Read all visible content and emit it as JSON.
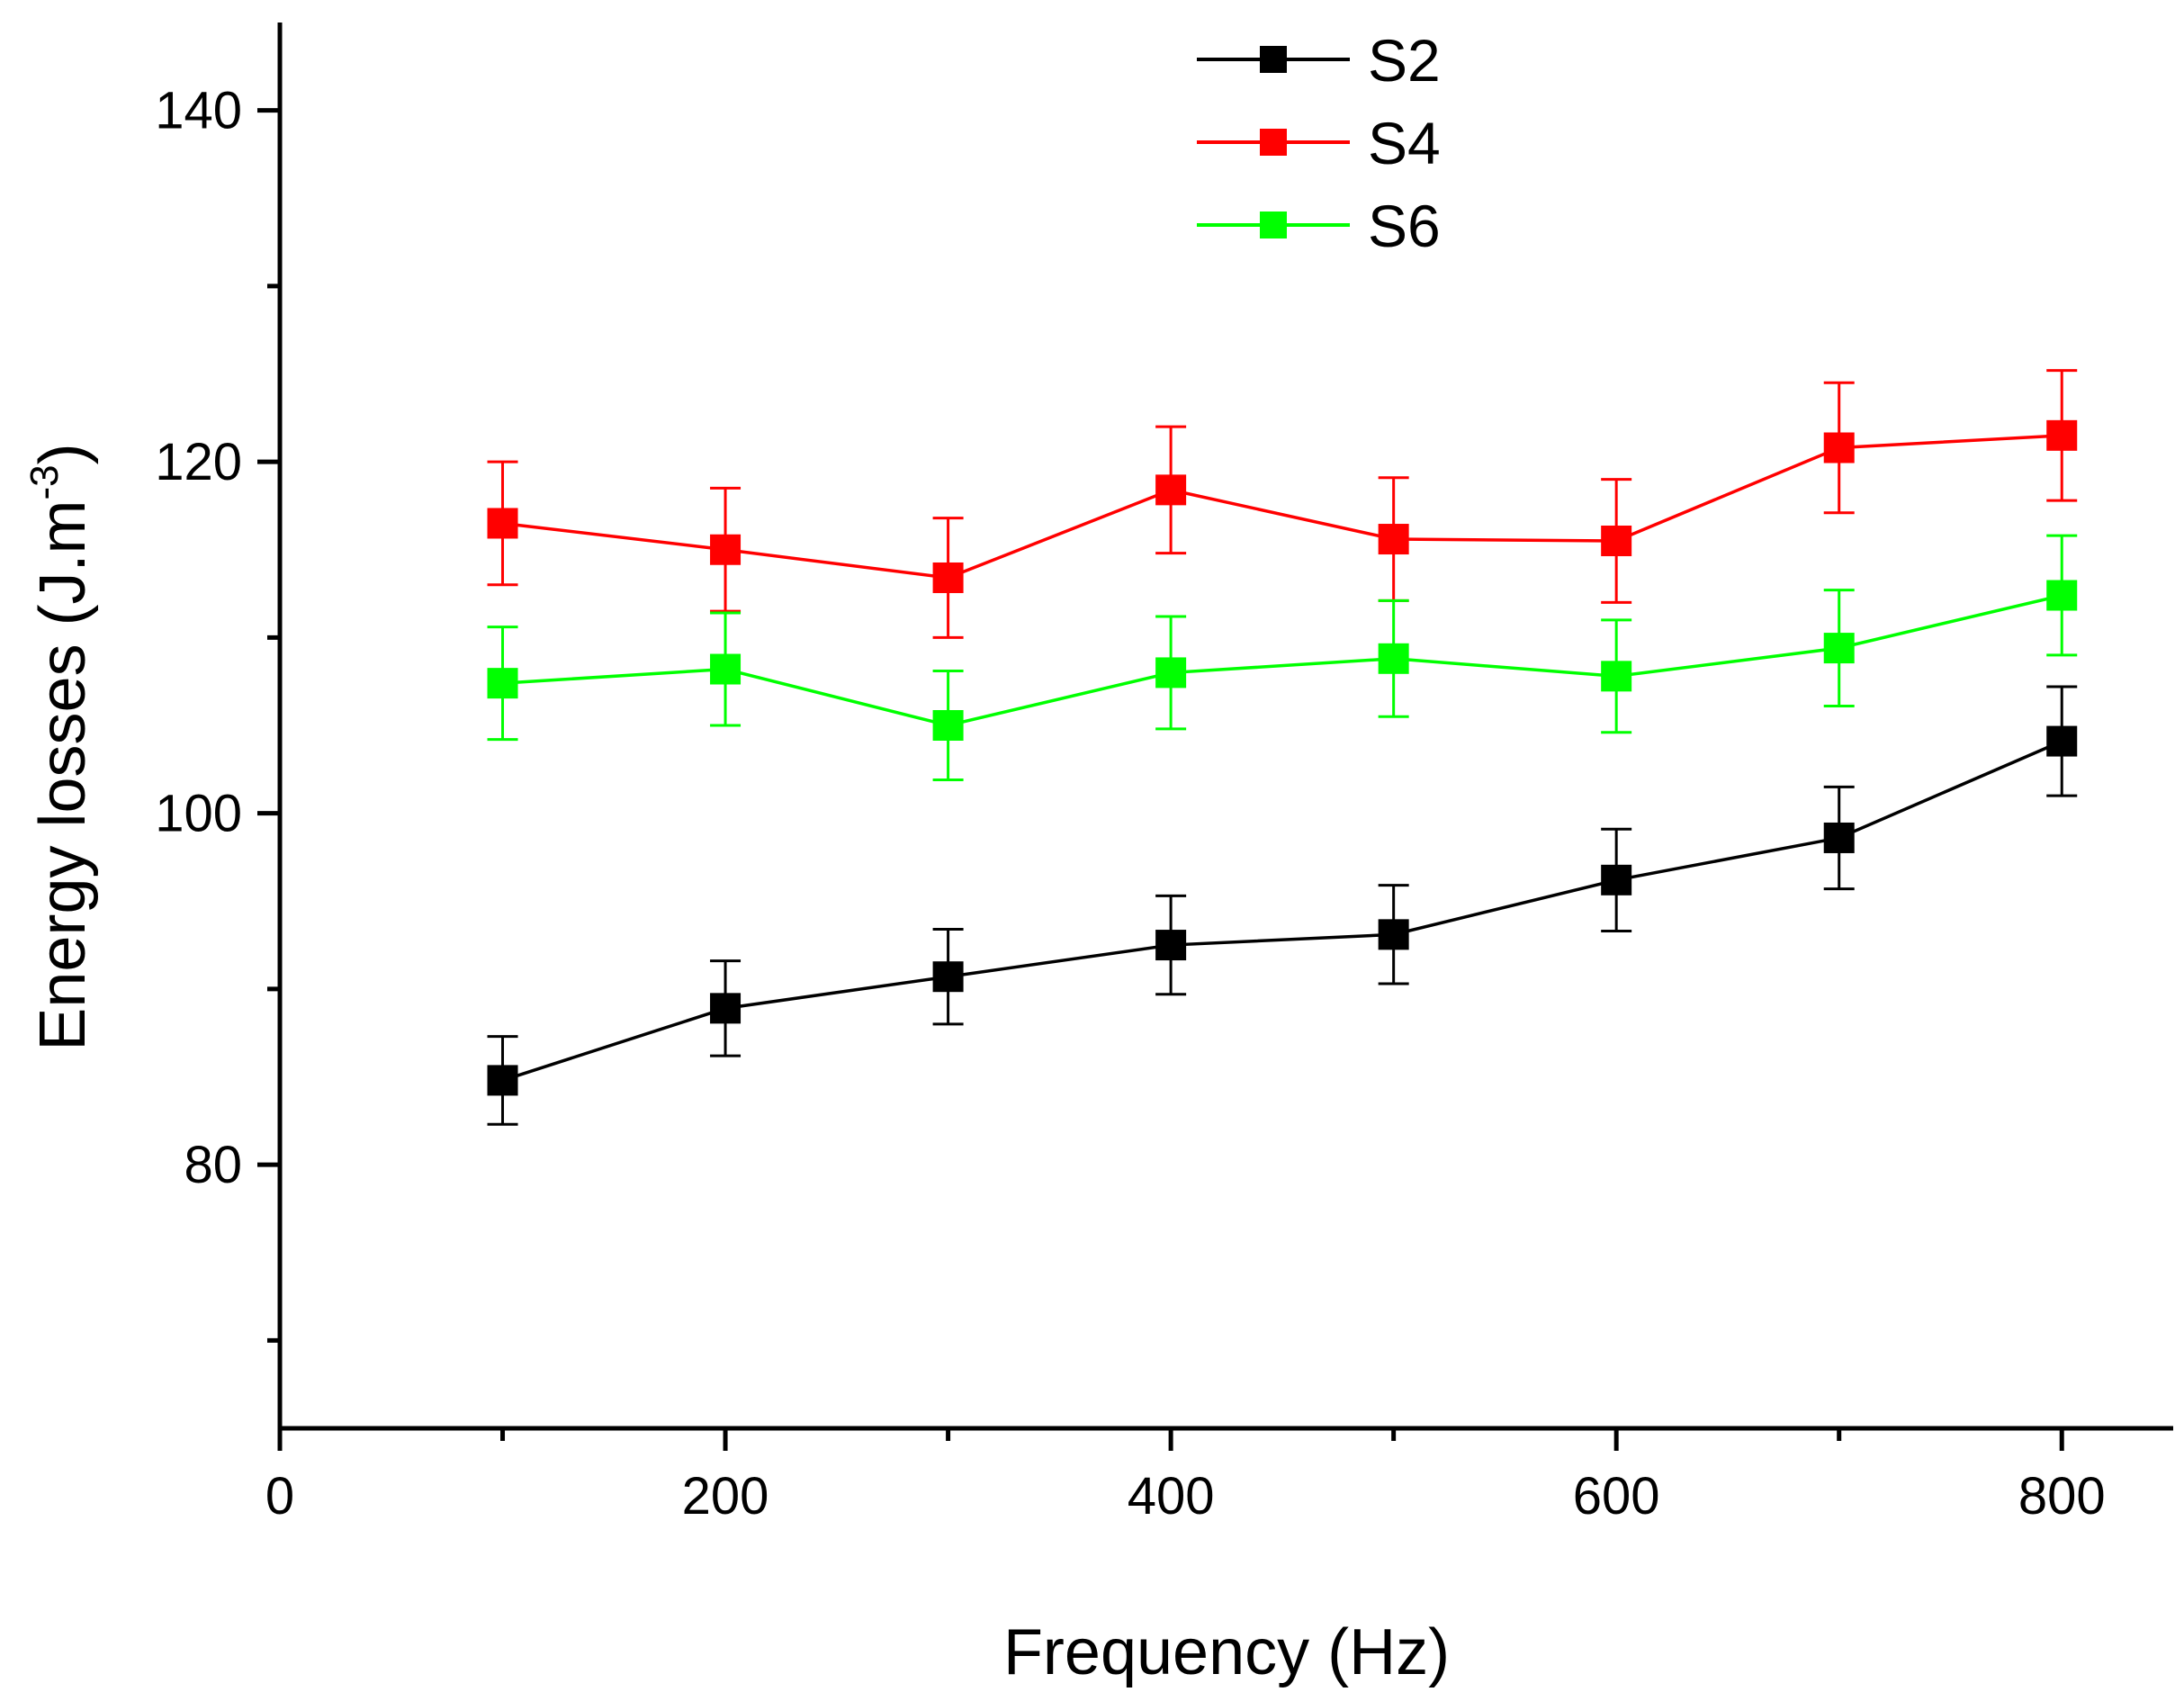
{
  "chart_data": {
    "type": "line",
    "title": "",
    "xlabel": "Frequency (Hz)",
    "ylabel_main": "Energy losses (J.m",
    "ylabel_sup": "-3",
    "ylabel_close": ")",
    "xlim": [
      0,
      850
    ],
    "ylim": [
      65,
      145
    ],
    "x_ticks": [
      0,
      200,
      400,
      600,
      800
    ],
    "x_tick_labels": [
      "0",
      "200",
      "400",
      "600",
      "800"
    ],
    "x_minor_ticks": [
      100,
      300,
      500,
      700
    ],
    "y_ticks": [
      80,
      100,
      120,
      140
    ],
    "y_tick_labels": [
      "80",
      "100",
      "120",
      "140"
    ],
    "y_minor_ticks": [
      70,
      90,
      110,
      130
    ],
    "grid": false,
    "legend_position": "top-center",
    "x": [
      100,
      200,
      300,
      400,
      500,
      600,
      700,
      800
    ],
    "series": [
      {
        "name": "S2",
        "color": "#000000",
        "marker": "square",
        "values": [
          84.8,
          88.9,
          90.7,
          92.5,
          93.1,
          96.2,
          98.6,
          104.1
        ],
        "errors": [
          2.5,
          2.7,
          2.7,
          2.8,
          2.8,
          2.9,
          2.9,
          3.1
        ]
      },
      {
        "name": "S4",
        "color": "#ff0000",
        "marker": "square",
        "values": [
          116.5,
          115.0,
          113.4,
          118.4,
          115.6,
          115.5,
          120.8,
          121.5
        ],
        "errors": [
          3.5,
          3.5,
          3.4,
          3.6,
          3.5,
          3.5,
          3.7,
          3.7
        ]
      },
      {
        "name": "S6",
        "color": "#00ff00",
        "marker": "square",
        "values": [
          107.4,
          108.2,
          105.0,
          108.0,
          108.8,
          107.8,
          109.4,
          112.4
        ],
        "errors": [
          3.2,
          3.2,
          3.1,
          3.2,
          3.3,
          3.2,
          3.3,
          3.4
        ]
      }
    ]
  }
}
